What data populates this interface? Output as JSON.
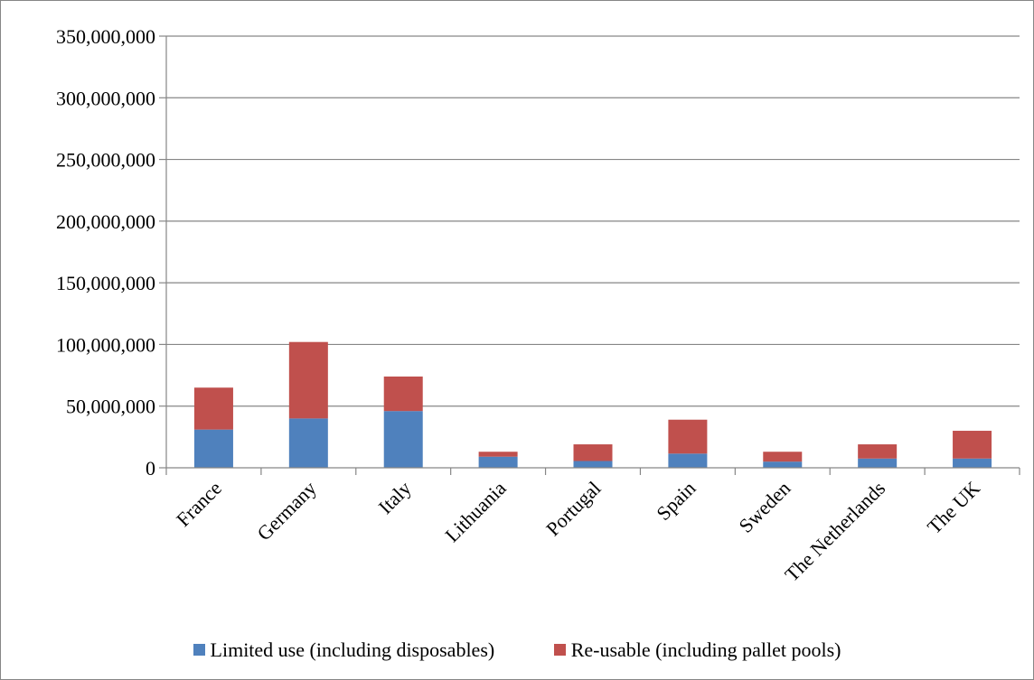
{
  "chart_data": {
    "type": "bar",
    "stacked": true,
    "categories": [
      "France",
      "Germany",
      "Italy",
      "Lithuania",
      "Portugal",
      "Spain",
      "Sweden",
      "The Netherlands",
      "The UK"
    ],
    "series": [
      {
        "name": "Limited use (including disposables)",
        "color": "#4F81BD",
        "values": [
          31000000,
          40000000,
          46000000,
          9000000,
          5500000,
          11500000,
          5000000,
          7500000,
          7500000
        ]
      },
      {
        "name": "Re-usable (including pallet pools)",
        "color": "#C0504D",
        "values": [
          34000000,
          62000000,
          28000000,
          4000000,
          13500000,
          27500000,
          8000000,
          11500000,
          22500000
        ]
      }
    ],
    "yticks": [
      "0",
      "50,000,000",
      "100,000,000",
      "150,000,000",
      "200,000,000",
      "250,000,000",
      "300,000,000",
      "350,000,000"
    ],
    "ylim": [
      0,
      350000000
    ],
    "ystep": 50000000,
    "grid": true,
    "legend_position": "bottom",
    "title": "",
    "xlabel": "",
    "ylabel": ""
  }
}
